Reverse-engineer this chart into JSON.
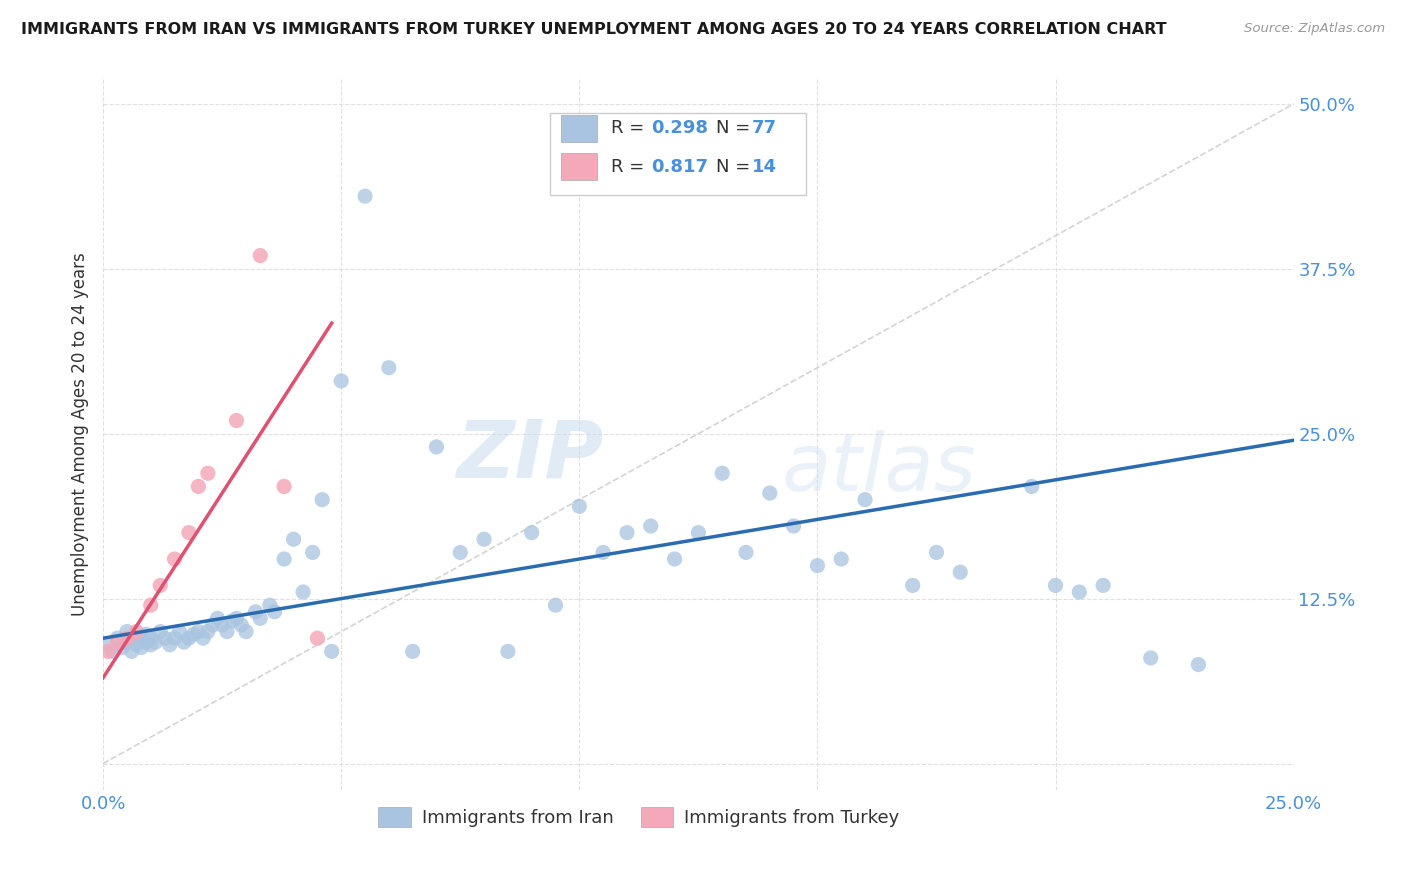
{
  "title": "IMMIGRANTS FROM IRAN VS IMMIGRANTS FROM TURKEY UNEMPLOYMENT AMONG AGES 20 TO 24 YEARS CORRELATION CHART",
  "source": "Source: ZipAtlas.com",
  "ylabel": "Unemployment Among Ages 20 to 24 years",
  "xlim": [
    0.0,
    0.25
  ],
  "ylim": [
    -0.02,
    0.52
  ],
  "iran_color": "#a8c4e0",
  "turkey_color": "#f4a8b8",
  "iran_line_color": "#2b6cb0",
  "turkey_line_color": "#e05070",
  "diagonal_line_color": "#cccccc",
  "background_color": "#ffffff",
  "grid_color": "#dddddd",
  "iran_R": 0.298,
  "iran_N": 77,
  "turkey_R": 0.817,
  "turkey_N": 14,
  "legend_label_iran": "Immigrants from Iran",
  "legend_label_turkey": "Immigrants from Turkey",
  "watermark_zip": "ZIP",
  "watermark_atlas": "atlas",
  "iran_x": [
    0.001,
    0.002,
    0.003,
    0.004,
    0.005,
    0.005,
    0.006,
    0.006,
    0.007,
    0.008,
    0.008,
    0.009,
    0.009,
    0.01,
    0.01,
    0.011,
    0.012,
    0.013,
    0.014,
    0.015,
    0.016,
    0.017,
    0.018,
    0.019,
    0.02,
    0.021,
    0.022,
    0.023,
    0.024,
    0.025,
    0.026,
    0.027,
    0.028,
    0.029,
    0.03,
    0.032,
    0.033,
    0.035,
    0.036,
    0.038,
    0.04,
    0.042,
    0.044,
    0.046,
    0.048,
    0.05,
    0.055,
    0.06,
    0.065,
    0.07,
    0.075,
    0.08,
    0.085,
    0.09,
    0.095,
    0.1,
    0.105,
    0.11,
    0.115,
    0.12,
    0.125,
    0.13,
    0.135,
    0.14,
    0.145,
    0.15,
    0.155,
    0.16,
    0.17,
    0.175,
    0.18,
    0.195,
    0.2,
    0.205,
    0.21,
    0.22,
    0.23
  ],
  "iran_y": [
    0.09,
    0.085,
    0.095,
    0.088,
    0.092,
    0.1,
    0.085,
    0.095,
    0.09,
    0.088,
    0.095,
    0.092,
    0.098,
    0.09,
    0.095,
    0.092,
    0.1,
    0.095,
    0.09,
    0.095,
    0.1,
    0.092,
    0.095,
    0.098,
    0.1,
    0.095,
    0.1,
    0.105,
    0.11,
    0.105,
    0.1,
    0.108,
    0.11,
    0.105,
    0.1,
    0.115,
    0.11,
    0.12,
    0.115,
    0.155,
    0.17,
    0.13,
    0.16,
    0.2,
    0.085,
    0.29,
    0.43,
    0.3,
    0.085,
    0.24,
    0.16,
    0.17,
    0.085,
    0.175,
    0.12,
    0.195,
    0.16,
    0.175,
    0.18,
    0.155,
    0.175,
    0.22,
    0.16,
    0.205,
    0.18,
    0.15,
    0.155,
    0.2,
    0.135,
    0.16,
    0.145,
    0.21,
    0.135,
    0.13,
    0.135,
    0.08,
    0.075
  ],
  "turkey_x": [
    0.001,
    0.003,
    0.005,
    0.007,
    0.01,
    0.012,
    0.015,
    0.018,
    0.02,
    0.022,
    0.028,
    0.033,
    0.038,
    0.045
  ],
  "turkey_y": [
    0.085,
    0.092,
    0.095,
    0.1,
    0.12,
    0.135,
    0.155,
    0.175,
    0.21,
    0.22,
    0.26,
    0.385,
    0.21,
    0.095
  ]
}
